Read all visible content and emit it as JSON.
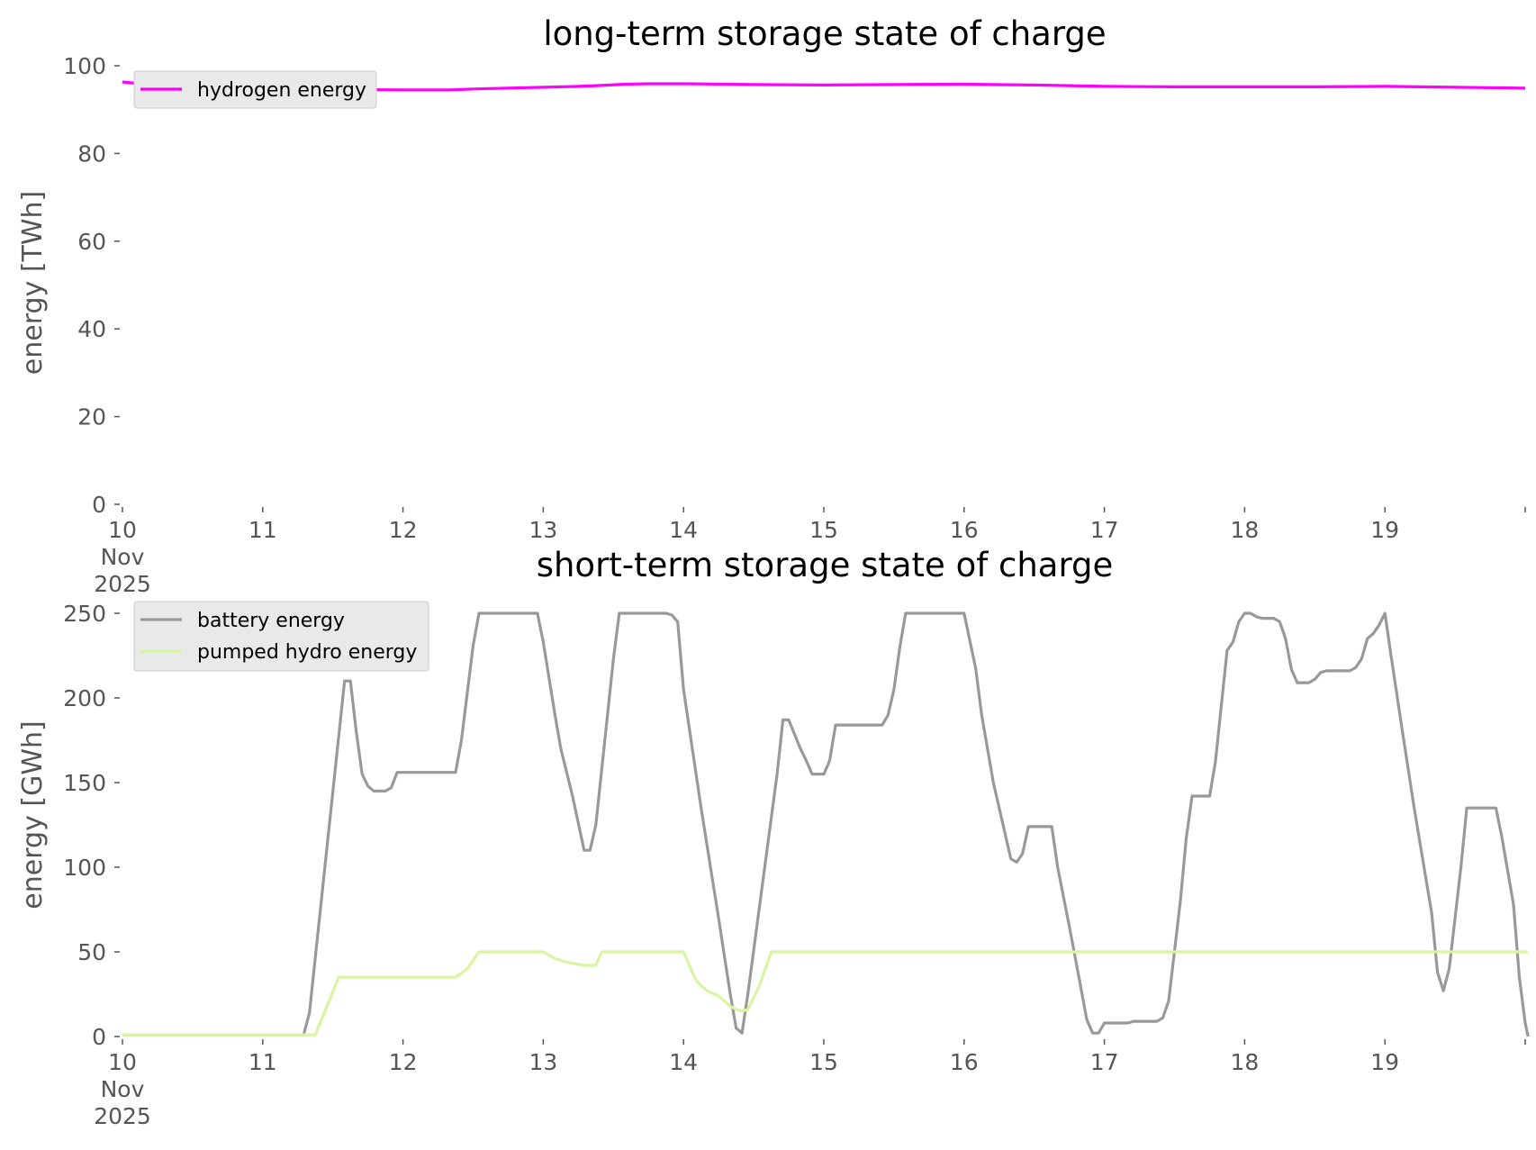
{
  "chart_data": [
    {
      "type": "line",
      "title": "long-term storage state of charge",
      "ylabel": "energy [TWh]",
      "xlabel": "",
      "xlim": [
        0,
        240
      ],
      "ylim": [
        0,
        100
      ],
      "yticks": [
        0,
        20,
        40,
        60,
        80,
        100
      ],
      "xticks": [
        {
          "x": 0,
          "label": "10",
          "sublabels": [
            "Nov",
            "2025"
          ]
        },
        {
          "x": 24,
          "label": "11"
        },
        {
          "x": 48,
          "label": "12"
        },
        {
          "x": 72,
          "label": "13"
        },
        {
          "x": 96,
          "label": "14"
        },
        {
          "x": 120,
          "label": "15"
        },
        {
          "x": 144,
          "label": "16"
        },
        {
          "x": 168,
          "label": "17"
        },
        {
          "x": 192,
          "label": "18"
        },
        {
          "x": 216,
          "label": "19"
        }
      ],
      "legend_position": "top-left",
      "series": [
        {
          "name": "hydrogen energy",
          "color": "#ff00ff",
          "points": [
            [
              0,
              96.3
            ],
            [
              3,
              95.9
            ],
            [
              6,
              95.5
            ],
            [
              12,
              95.2
            ],
            [
              24,
              94.8
            ],
            [
              36,
              94.6
            ],
            [
              48,
              94.5
            ],
            [
              56,
              94.5
            ],
            [
              60,
              94.7
            ],
            [
              66,
              94.9
            ],
            [
              72,
              95.1
            ],
            [
              78,
              95.3
            ],
            [
              82,
              95.5
            ],
            [
              86,
              95.8
            ],
            [
              90,
              95.9
            ],
            [
              96,
              95.9
            ],
            [
              108,
              95.7
            ],
            [
              120,
              95.6
            ],
            [
              132,
              95.7
            ],
            [
              144,
              95.8
            ],
            [
              156,
              95.6
            ],
            [
              168,
              95.3
            ],
            [
              180,
              95.2
            ],
            [
              192,
              95.2
            ],
            [
              204,
              95.2
            ],
            [
              216,
              95.3
            ],
            [
              228,
              95.1
            ],
            [
              240,
              94.9
            ]
          ]
        }
      ]
    },
    {
      "type": "line",
      "title": "short-term storage state of charge",
      "ylabel": "energy [GWh]",
      "xlabel": "",
      "xlim": [
        0,
        240
      ],
      "ylim": [
        0,
        250
      ],
      "yticks": [
        0,
        50,
        100,
        150,
        200,
        250
      ],
      "xticks": [
        {
          "x": 0,
          "label": "10",
          "sublabels": [
            "Nov",
            "2025"
          ]
        },
        {
          "x": 24,
          "label": "11"
        },
        {
          "x": 48,
          "label": "12"
        },
        {
          "x": 72,
          "label": "13"
        },
        {
          "x": 96,
          "label": "14"
        },
        {
          "x": 120,
          "label": "15"
        },
        {
          "x": 144,
          "label": "16"
        },
        {
          "x": 168,
          "label": "17"
        },
        {
          "x": 192,
          "label": "18"
        },
        {
          "x": 216,
          "label": "19"
        }
      ],
      "legend_position": "top-left",
      "series": [
        {
          "name": "battery energy",
          "color": "#999999",
          "points": [
            [
              0,
              1
            ],
            [
              31,
              1
            ],
            [
              32,
              14
            ],
            [
              38,
              210
            ],
            [
              39,
              210
            ],
            [
              40,
              180
            ],
            [
              41,
              155
            ],
            [
              42,
              148
            ],
            [
              43,
              145
            ],
            [
              45,
              145
            ],
            [
              46,
              147
            ],
            [
              47,
              156
            ],
            [
              57,
              156
            ],
            [
              58,
              175
            ],
            [
              60,
              231
            ],
            [
              61,
              250
            ],
            [
              71,
              250
            ],
            [
              72,
              233
            ],
            [
              74,
              190
            ],
            [
              75,
              170
            ],
            [
              77,
              142
            ],
            [
              79,
              110
            ],
            [
              80,
              110
            ],
            [
              81,
              125
            ],
            [
              84,
              223
            ],
            [
              85,
              250
            ],
            [
              93,
              250
            ],
            [
              94,
              249
            ],
            [
              95,
              245
            ],
            [
              96,
              205
            ],
            [
              99,
              135
            ],
            [
              102,
              70
            ],
            [
              104,
              25
            ],
            [
              105,
              5
            ],
            [
              106,
              2
            ],
            [
              107,
              25
            ],
            [
              112,
              155
            ],
            [
              113,
              187
            ],
            [
              114,
              187
            ],
            [
              116,
              170
            ],
            [
              117,
              163
            ],
            [
              118,
              155
            ],
            [
              120,
              155
            ],
            [
              121,
              163
            ],
            [
              122,
              184
            ],
            [
              130,
              184
            ],
            [
              131,
              190
            ],
            [
              132,
              205
            ],
            [
              133,
              230
            ],
            [
              134,
              250
            ],
            [
              144,
              250
            ],
            [
              146,
              217
            ],
            [
              147,
              190
            ],
            [
              149,
              150
            ],
            [
              152,
              105
            ],
            [
              153,
              103
            ],
            [
              154,
              108
            ],
            [
              155,
              124
            ],
            [
              159,
              124
            ],
            [
              160,
              100
            ],
            [
              162,
              65
            ],
            [
              163,
              47
            ],
            [
              165,
              10
            ],
            [
              166,
              2
            ],
            [
              167,
              2
            ],
            [
              168,
              8
            ],
            [
              172,
              8
            ],
            [
              173,
              9
            ],
            [
              177,
              9
            ],
            [
              178,
              11
            ],
            [
              179,
              21
            ],
            [
              181,
              80
            ],
            [
              182,
              117
            ],
            [
              183,
              142
            ],
            [
              186,
              142
            ],
            [
              187,
              162
            ],
            [
              189,
              228
            ],
            [
              190,
              233
            ],
            [
              191,
              245
            ],
            [
              192,
              250
            ],
            [
              193,
              250
            ],
            [
              194,
              248
            ],
            [
              195,
              247
            ],
            [
              197,
              247
            ],
            [
              198,
              245
            ],
            [
              199,
              235
            ],
            [
              200,
              217
            ],
            [
              201,
              209
            ],
            [
              203,
              209
            ],
            [
              204,
              211
            ],
            [
              205,
              215
            ],
            [
              206,
              216
            ],
            [
              209,
              216
            ],
            [
              210,
              216
            ],
            [
              211,
              218
            ],
            [
              212,
              223
            ],
            [
              213,
              235
            ],
            [
              214,
              238
            ],
            [
              215,
              243
            ],
            [
              216,
              250
            ],
            [
              217,
              226
            ],
            [
              219,
              180
            ],
            [
              221,
              135
            ],
            [
              224,
              73
            ],
            [
              225,
              38
            ],
            [
              226,
              27
            ],
            [
              227,
              40
            ],
            [
              229,
              100
            ],
            [
              230,
              135
            ],
            [
              235,
              135
            ],
            [
              236,
              118
            ],
            [
              238,
              78
            ],
            [
              239,
              35
            ],
            [
              240,
              8
            ],
            [
              241,
              0
            ]
          ]
        },
        {
          "name": "pumped hydro energy",
          "color": "#d8f5a2",
          "points": [
            [
              0,
              1
            ],
            [
              33,
              1
            ],
            [
              37,
              35
            ],
            [
              57,
              35
            ],
            [
              59,
              40
            ],
            [
              61,
              50
            ],
            [
              72,
              50
            ],
            [
              74,
              46
            ],
            [
              76,
              44
            ],
            [
              79,
              42
            ],
            [
              81,
              42
            ],
            [
              82,
              50
            ],
            [
              96,
              50
            ],
            [
              97,
              42
            ],
            [
              98,
              34
            ],
            [
              99,
              30
            ],
            [
              100,
              27
            ],
            [
              102,
              24
            ],
            [
              104,
              18
            ],
            [
              105,
              16
            ],
            [
              106,
              15
            ],
            [
              107,
              16
            ],
            [
              109,
              30
            ],
            [
              111,
              50
            ],
            [
              241,
              50
            ]
          ]
        }
      ]
    }
  ]
}
